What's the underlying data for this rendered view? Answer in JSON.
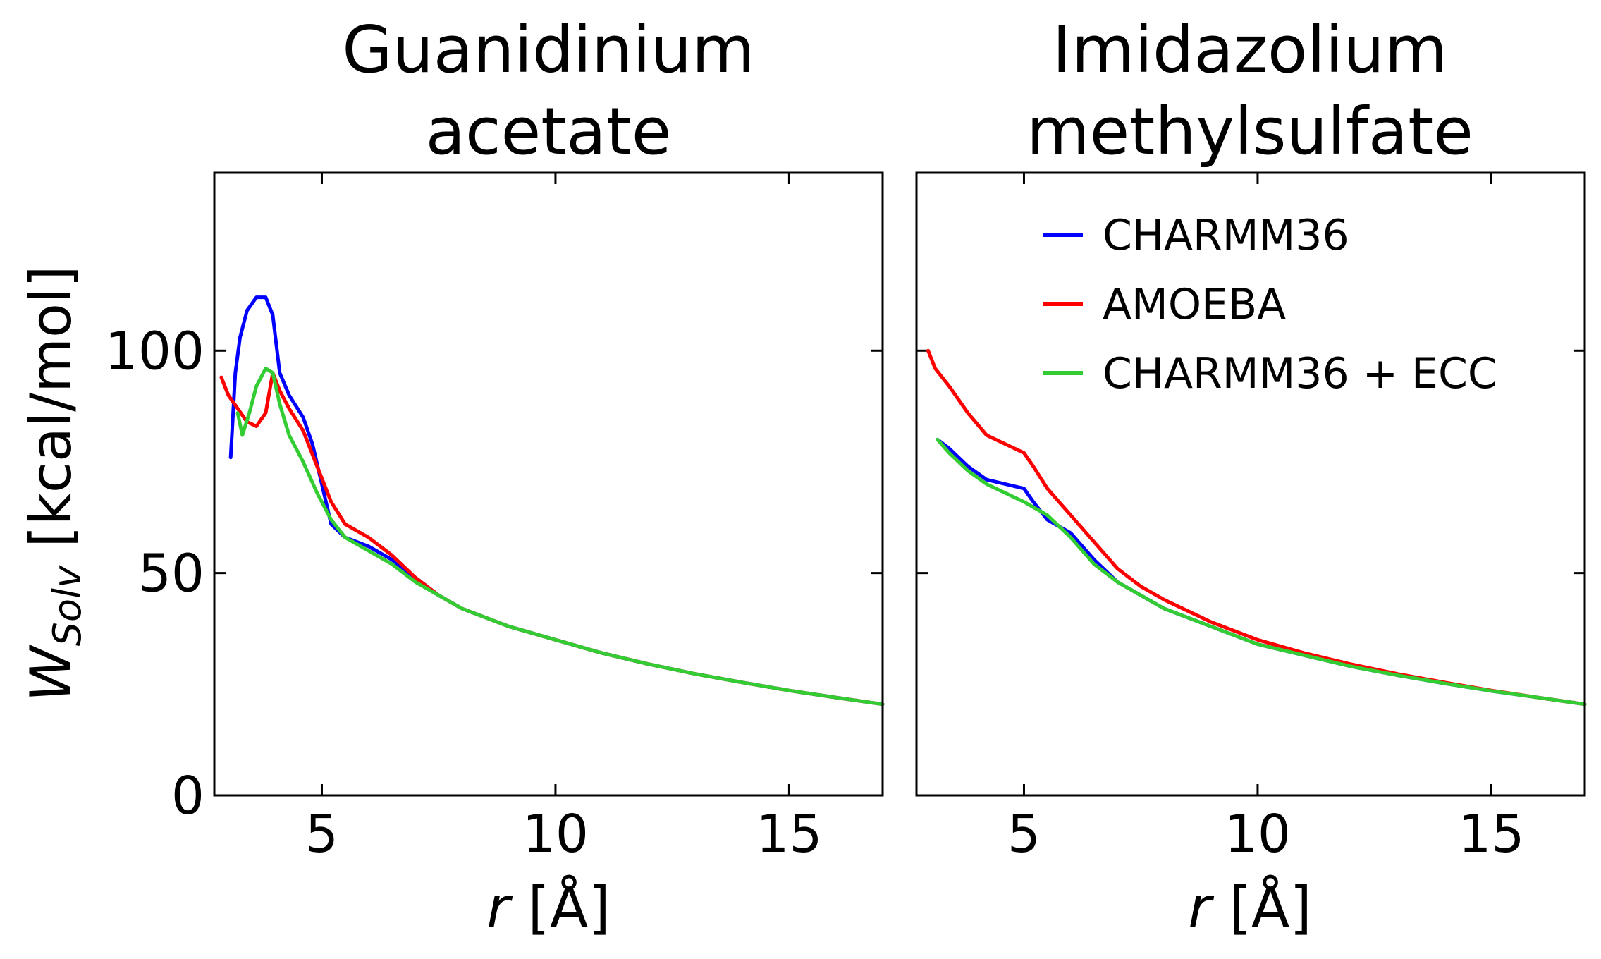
{
  "chart_data": [
    {
      "type": "line",
      "title_lines": [
        "Guanidinium",
        "acetate"
      ],
      "xlabel": "r",
      "xunit": "[Å]",
      "ylabel": "W",
      "ylabel_sub": "Solv",
      "yunit": "[kcal/mol]",
      "xlim": [
        2.7,
        17
      ],
      "ylim": [
        0,
        140
      ],
      "xticks": [
        5,
        10,
        15
      ],
      "yticks": [
        0,
        50,
        100
      ],
      "legend": false,
      "series": [
        {
          "name": "CHARMM36",
          "color": "#0000ff",
          "x": [
            3.05,
            3.15,
            3.25,
            3.4,
            3.6,
            3.8,
            3.95,
            4.1,
            4.3,
            4.6,
            4.8,
            5.0,
            5.2,
            5.5,
            6.0,
            6.5,
            7.0,
            7.5,
            8.0,
            9.0,
            10.0,
            11.0,
            12.0,
            13.0,
            14.0,
            15.0,
            16.0,
            17.0
          ],
          "y": [
            76,
            95,
            103,
            109,
            112,
            112,
            108,
            95,
            90,
            85,
            79,
            70,
            61,
            58,
            56,
            53,
            49,
            45,
            42,
            38,
            35,
            32,
            29.5,
            27.3,
            25.4,
            23.6,
            22,
            20.5
          ]
        },
        {
          "name": "AMOEBA",
          "color": "#ff0000",
          "x": [
            2.85,
            3.0,
            3.2,
            3.4,
            3.6,
            3.8,
            3.95,
            4.1,
            4.3,
            4.6,
            4.9,
            5.2,
            5.5,
            6.0,
            6.5,
            7.0,
            7.5,
            8.0,
            9.0,
            10.0,
            11.0,
            12.0,
            13.0,
            14.0,
            15.0,
            16.0,
            17.0
          ],
          "y": [
            94,
            90,
            87,
            84,
            83,
            86,
            95,
            91,
            87,
            82,
            74,
            66,
            61,
            58,
            54,
            49,
            45,
            42,
            38,
            35,
            32,
            29.5,
            27.3,
            25.4,
            23.6,
            22,
            20.5
          ]
        },
        {
          "name": "CHARMM36 + ECC",
          "color": "#33cc33",
          "x": [
            3.2,
            3.3,
            3.45,
            3.6,
            3.8,
            3.95,
            4.1,
            4.3,
            4.6,
            4.9,
            5.2,
            5.5,
            6.0,
            6.5,
            7.0,
            7.5,
            8.0,
            9.0,
            10.0,
            11.0,
            12.0,
            13.0,
            14.0,
            15.0,
            16.0,
            17.0
          ],
          "y": [
            86,
            81,
            86,
            92,
            96,
            95,
            88,
            81,
            75,
            68,
            62,
            58,
            55,
            52,
            48,
            45,
            42,
            38,
            35,
            32,
            29.5,
            27.3,
            25.4,
            23.6,
            22,
            20.5
          ]
        }
      ]
    },
    {
      "type": "line",
      "title_lines": [
        "Imidazolium",
        "methylsulfate"
      ],
      "xlabel": "r",
      "xunit": "[Å]",
      "xlim": [
        2.7,
        17
      ],
      "ylim": [
        0,
        140
      ],
      "xticks": [
        5,
        10,
        15
      ],
      "yticks": [
        0,
        50,
        100
      ],
      "legend": true,
      "legend_position": "top-right",
      "series": [
        {
          "name": "CHARMM36",
          "color": "#0000ff",
          "x": [
            3.15,
            3.4,
            3.8,
            4.2,
            4.6,
            5.0,
            5.2,
            5.5,
            6.0,
            6.5,
            7.0,
            7.5,
            8.0,
            9.0,
            10.0,
            11.0,
            12.0,
            13.0,
            14.0,
            15.0,
            16.0,
            17.0
          ],
          "y": [
            80,
            78,
            74,
            71,
            70,
            69,
            66,
            62,
            59,
            53,
            48,
            45,
            42,
            38,
            34,
            31.5,
            29,
            27,
            25.2,
            23.5,
            22,
            20.5
          ]
        },
        {
          "name": "AMOEBA",
          "color": "#ff0000",
          "x": [
            2.95,
            3.1,
            3.4,
            3.8,
            4.2,
            4.6,
            5.0,
            5.2,
            5.5,
            6.0,
            6.5,
            7.0,
            7.5,
            8.0,
            9.0,
            10.0,
            11.0,
            12.0,
            13.0,
            14.0,
            15.0,
            16.0,
            17.0
          ],
          "y": [
            100,
            96,
            92,
            86,
            81,
            79,
            77,
            74,
            69,
            63,
            57,
            51,
            47,
            44,
            39,
            35,
            32,
            29.5,
            27.3,
            25.4,
            23.6,
            22,
            20.5
          ]
        },
        {
          "name": "CHARMM36 + ECC",
          "color": "#33cc33",
          "x": [
            3.15,
            3.4,
            3.8,
            4.2,
            4.6,
            5.0,
            5.5,
            6.0,
            6.5,
            7.0,
            7.5,
            8.0,
            9.0,
            10.0,
            11.0,
            12.0,
            13.0,
            14.0,
            15.0,
            16.0,
            17.0
          ],
          "y": [
            80,
            77,
            73,
            70,
            68,
            66,
            63,
            58,
            52,
            48,
            45,
            42,
            38,
            34,
            31.5,
            29,
            27,
            25.2,
            23.5,
            22,
            20.5
          ]
        }
      ]
    }
  ]
}
